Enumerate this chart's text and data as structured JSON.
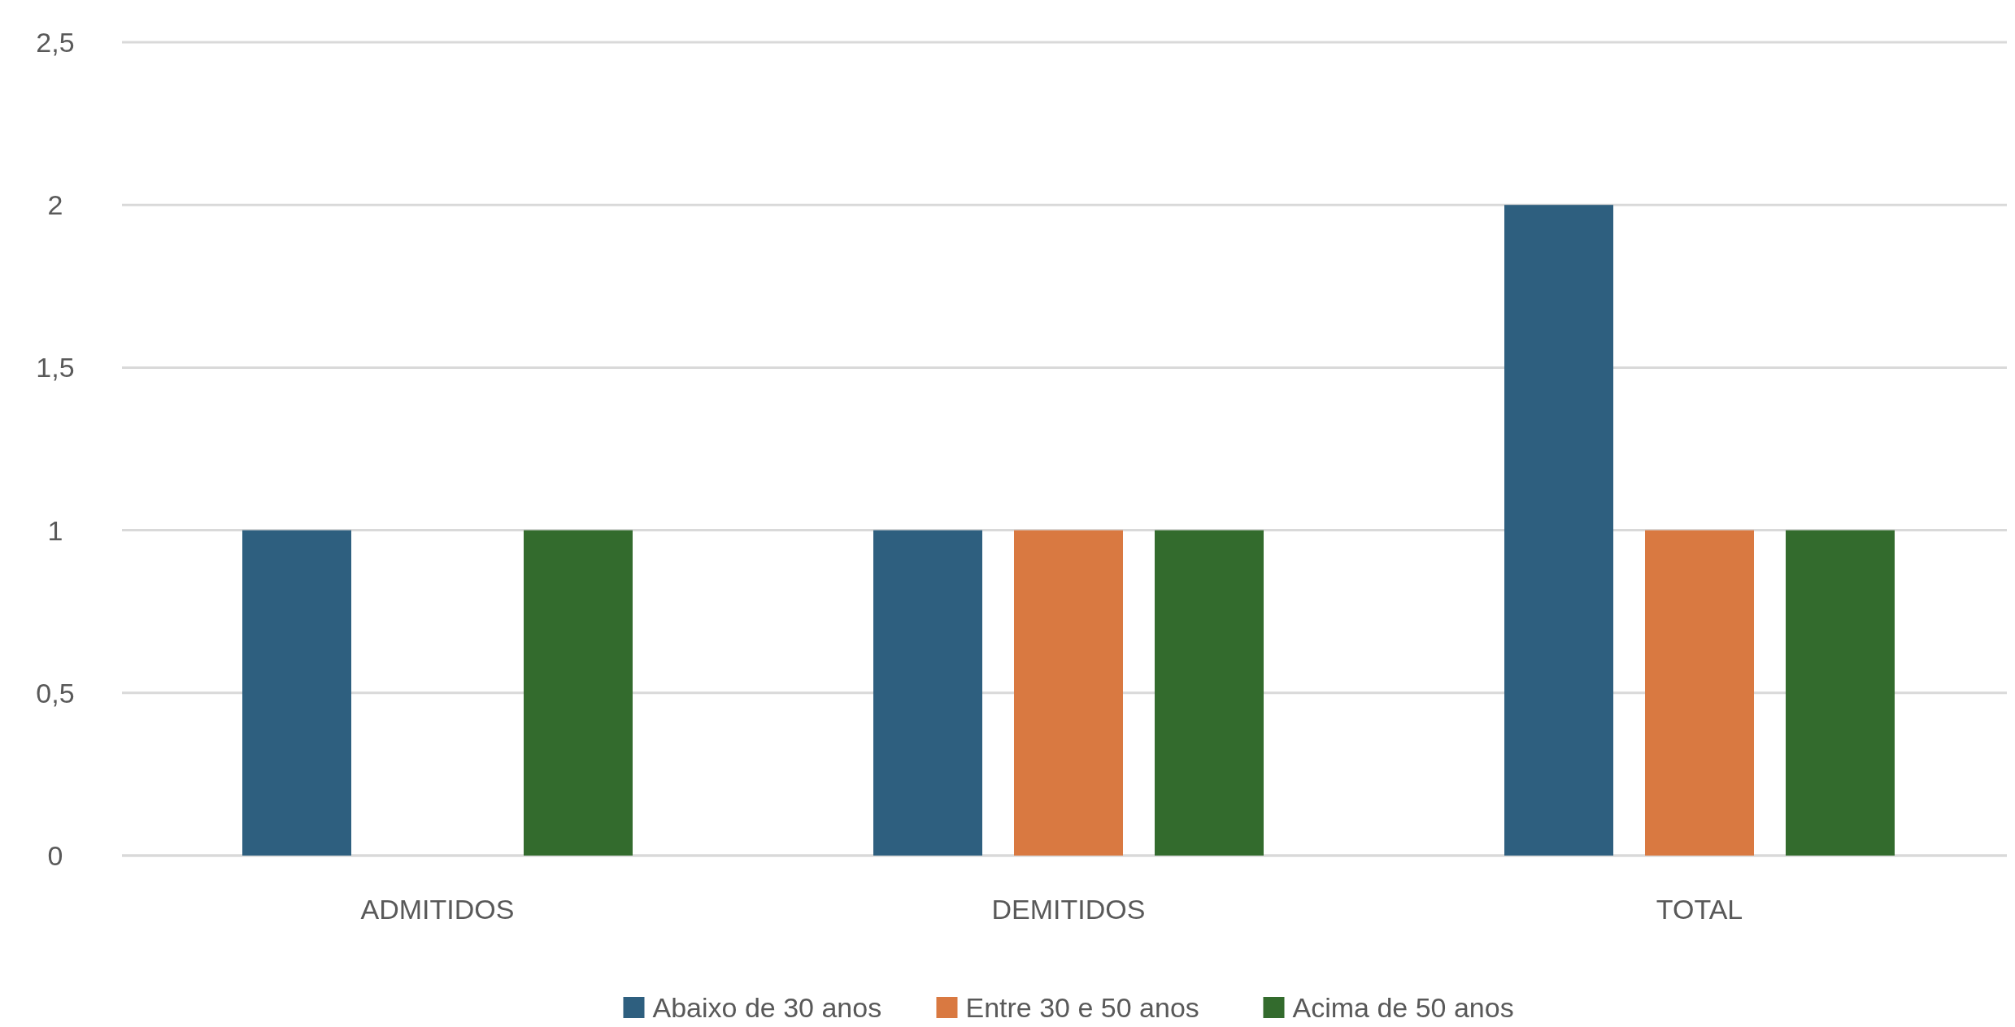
{
  "chart_data": {
    "type": "bar",
    "categories": [
      "ADMITIDOS",
      "DEMITIDOS",
      "TOTAL"
    ],
    "series": [
      {
        "name": "Abaixo de 30 anos",
        "color": "#2e5f7f",
        "values": [
          1,
          1,
          2
        ]
      },
      {
        "name": "Entre 30 e 50 anos",
        "color": "#d97941",
        "values": [
          0,
          1,
          1
        ]
      },
      {
        "name": "Acima de 50 anos",
        "color": "#336b2d",
        "values": [
          1,
          1,
          1
        ]
      }
    ],
    "ylim": [
      0,
      2.5
    ],
    "yticks": [
      0,
      {
        "value": 0.5,
        "label": "0,5"
      },
      1,
      {
        "value": 1.5,
        "label": "1,5"
      },
      2,
      {
        "value": 2.5,
        "label": "2,5"
      }
    ],
    "grid": "y",
    "legend": "bottom"
  }
}
